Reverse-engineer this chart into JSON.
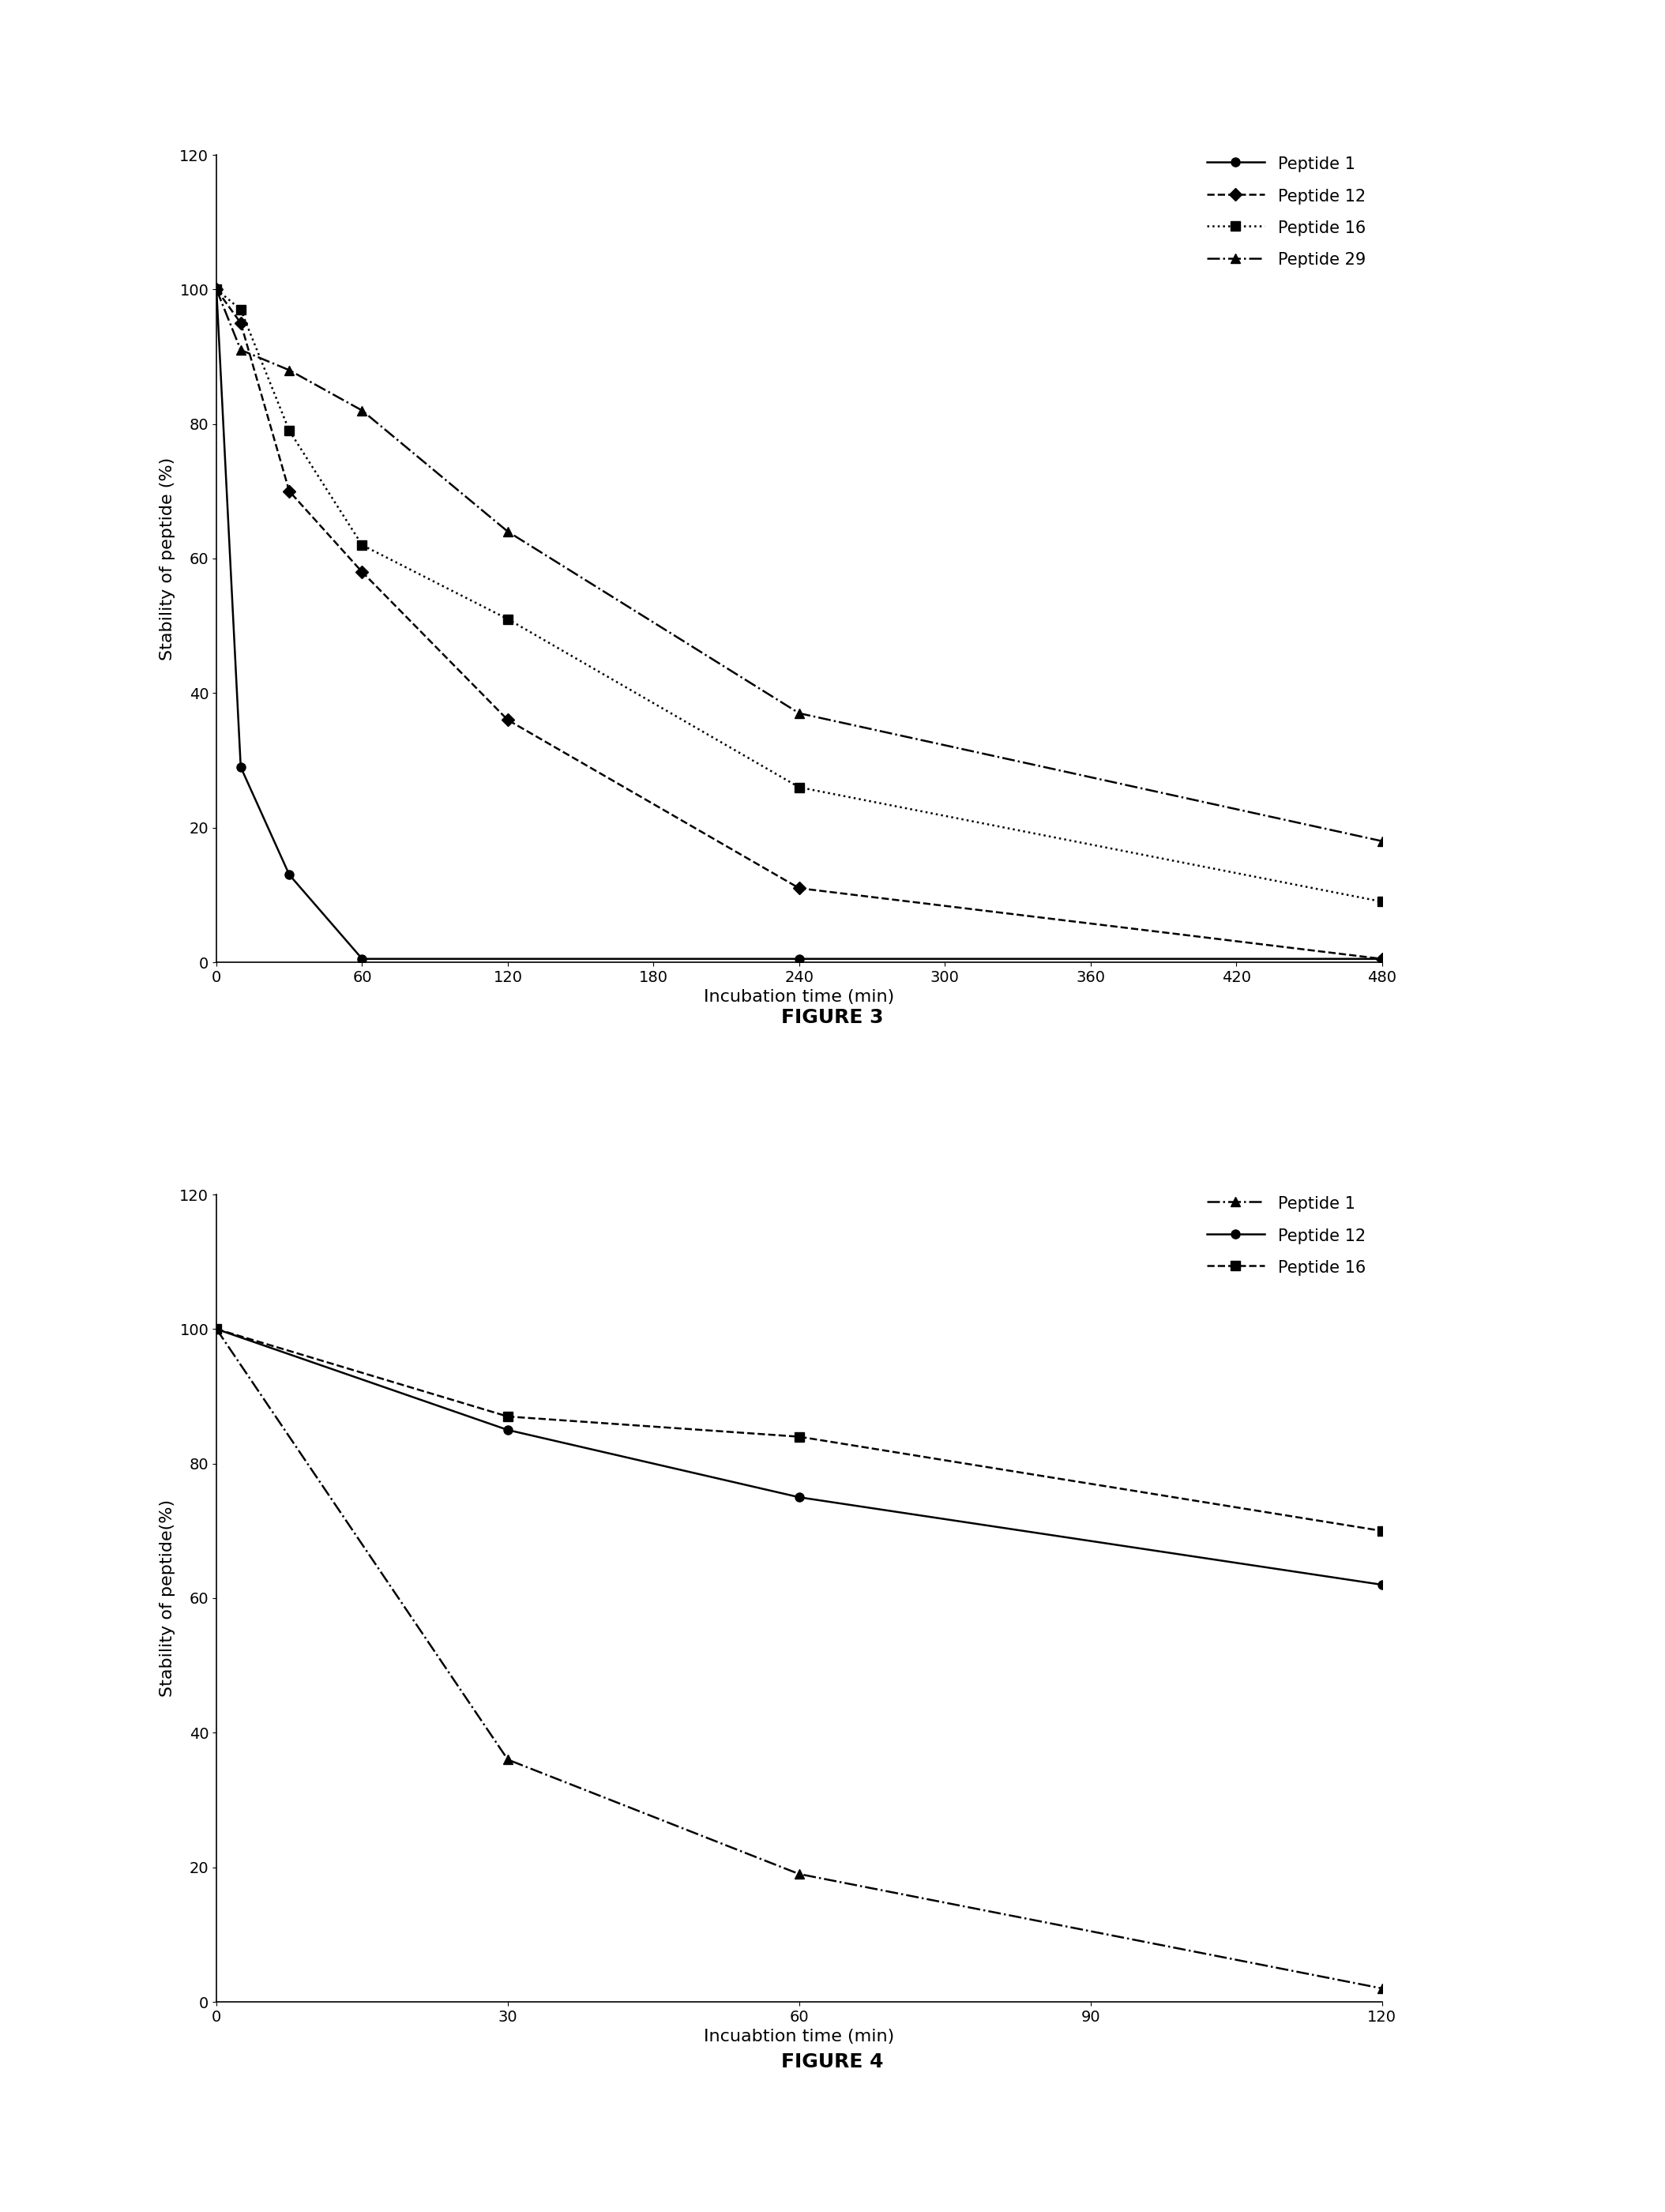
{
  "fig3": {
    "title": "FIGURE 3",
    "xlabel": "Incubation time (min)",
    "ylabel": "Stability of peptide (%)",
    "xlim": [
      0,
      480
    ],
    "ylim": [
      0,
      120
    ],
    "xticks": [
      0,
      60,
      120,
      180,
      240,
      300,
      360,
      420,
      480
    ],
    "yticks": [
      0,
      20,
      40,
      60,
      80,
      100,
      120
    ],
    "series": [
      {
        "x": [
          0,
          10,
          30,
          60,
          240,
          480
        ],
        "y": [
          100,
          29,
          13,
          0.5,
          0.5,
          0.5
        ],
        "label": "Peptide 1",
        "linestyle": "-",
        "marker": "o"
      },
      {
        "x": [
          0,
          10,
          30,
          60,
          120,
          240,
          480
        ],
        "y": [
          100,
          95,
          70,
          58,
          36,
          11,
          0.5
        ],
        "label": "Peptide 12",
        "linestyle": "--",
        "marker": "D"
      },
      {
        "x": [
          0,
          10,
          30,
          60,
          120,
          240,
          480
        ],
        "y": [
          100,
          97,
          79,
          62,
          51,
          26,
          9
        ],
        "label": "Peptide 16",
        "linestyle": ":",
        "marker": "s"
      },
      {
        "x": [
          0,
          10,
          30,
          60,
          120,
          240,
          480
        ],
        "y": [
          100,
          91,
          88,
          82,
          64,
          37,
          18
        ],
        "label": "Peptide 29",
        "linestyle": "-.",
        "marker": "^"
      }
    ]
  },
  "fig4": {
    "title": "FIGURE 4",
    "xlabel": "Incuabtion time (min)",
    "ylabel": "Stability of peptide(%)",
    "xlim": [
      0,
      120
    ],
    "ylim": [
      0,
      120
    ],
    "xticks": [
      0,
      30,
      60,
      90,
      120
    ],
    "yticks": [
      0,
      20,
      40,
      60,
      80,
      100,
      120
    ],
    "series": [
      {
        "x": [
          0,
          30,
          60,
          120
        ],
        "y": [
          100,
          36,
          19,
          2
        ],
        "label": "Peptide 1",
        "linestyle": "-.",
        "marker": "^"
      },
      {
        "x": [
          0,
          30,
          60,
          120
        ],
        "y": [
          100,
          85,
          75,
          62
        ],
        "label": "Peptide 12",
        "linestyle": "-",
        "marker": "o"
      },
      {
        "x": [
          0,
          30,
          60,
          120
        ],
        "y": [
          100,
          87,
          84,
          70
        ],
        "label": "Peptide 16",
        "linestyle": "--",
        "marker": "s"
      }
    ]
  },
  "background_color": "#ffffff",
  "line_color": "#000000",
  "marker_size": 8,
  "line_width": 1.8,
  "tick_labelsize": 14,
  "axis_labelsize": 16,
  "legend_fontsize": 15,
  "title_fontsize": 18
}
